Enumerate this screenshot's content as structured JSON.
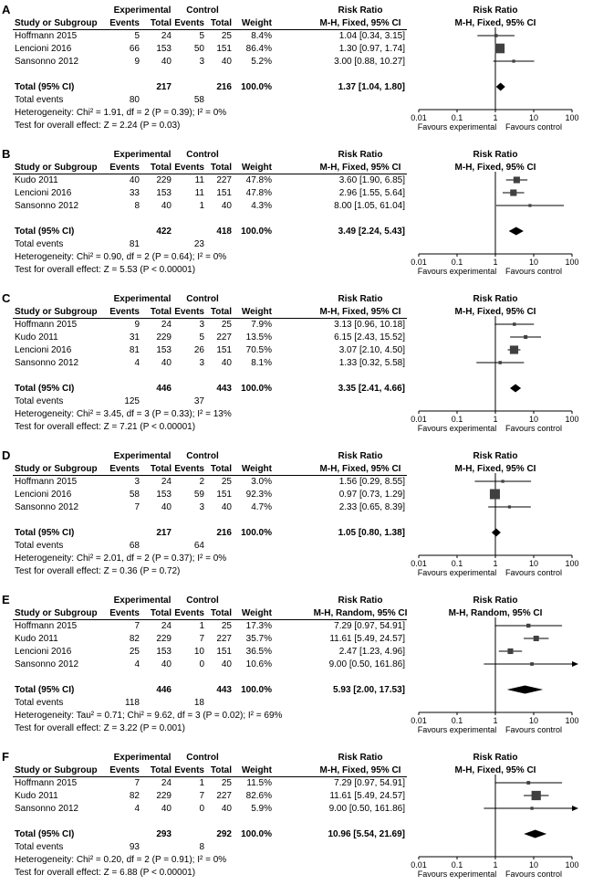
{
  "chart_data": {
    "type": "forest",
    "xscale": "log",
    "xlim": [
      0.01,
      100
    ],
    "xticks": [
      0.01,
      0.1,
      1,
      10,
      100
    ],
    "favours": {
      "left": "Favours experimental",
      "right": "Favours control"
    },
    "marker_color": "#404040",
    "headers": {
      "study": "Study or Subgroup",
      "experimental": "Experimental",
      "control": "Control",
      "events": "Events",
      "total": "Total",
      "weight": "Weight",
      "risk_ratio": "Risk Ratio"
    },
    "panels": [
      {
        "label": "A",
        "effect_label": "M-H, Fixed, 95% CI",
        "studies": [
          {
            "name": "Hoffmann 2015",
            "exp_events": "5",
            "exp_total": "24",
            "ctrl_events": "5",
            "ctrl_total": "25",
            "weight": "8.4%",
            "rr": 1.04,
            "lo": 0.34,
            "hi": 3.15,
            "ci_text": "1.04 [0.34, 3.15]"
          },
          {
            "name": "Lencioni 2016",
            "exp_events": "66",
            "exp_total": "153",
            "ctrl_events": "50",
            "ctrl_total": "151",
            "weight": "86.4%",
            "rr": 1.3,
            "lo": 0.97,
            "hi": 1.74,
            "ci_text": "1.30 [0.97, 1.74]"
          },
          {
            "name": "Sansonno 2012",
            "exp_events": "9",
            "exp_total": "40",
            "ctrl_events": "3",
            "ctrl_total": "40",
            "weight": "5.2%",
            "rr": 3.0,
            "lo": 0.88,
            "hi": 10.27,
            "ci_text": "3.00 [0.88, 10.27]"
          }
        ],
        "total": {
          "label": "Total (95% CI)",
          "exp_total": "217",
          "ctrl_total": "216",
          "weight": "100.0%",
          "rr": 1.37,
          "lo": 1.04,
          "hi": 1.8,
          "ci_text": "1.37 [1.04, 1.80]"
        },
        "total_events": {
          "label": "Total events",
          "experimental": "80",
          "control": "58"
        },
        "heterogeneity": "Heterogeneity: Chi² = 1.91, df = 2 (P = 0.39); I² = 0%",
        "overall_effect": "Test for overall effect: Z = 2.24 (P = 0.03)"
      },
      {
        "label": "B",
        "effect_label": "M-H, Fixed, 95% CI",
        "studies": [
          {
            "name": "Kudo 2011",
            "exp_events": "40",
            "exp_total": "229",
            "ctrl_events": "11",
            "ctrl_total": "227",
            "weight": "47.8%",
            "rr": 3.6,
            "lo": 1.9,
            "hi": 6.85,
            "ci_text": "3.60 [1.90, 6.85]"
          },
          {
            "name": "Lencioni 2016",
            "exp_events": "33",
            "exp_total": "153",
            "ctrl_events": "11",
            "ctrl_total": "151",
            "weight": "47.8%",
            "rr": 2.96,
            "lo": 1.55,
            "hi": 5.64,
            "ci_text": "2.96 [1.55, 5.64]"
          },
          {
            "name": "Sansonno 2012",
            "exp_events": "8",
            "exp_total": "40",
            "ctrl_events": "1",
            "ctrl_total": "40",
            "weight": "4.3%",
            "rr": 8.0,
            "lo": 1.05,
            "hi": 61.04,
            "ci_text": "8.00 [1.05, 61.04]"
          }
        ],
        "total": {
          "label": "Total (95% CI)",
          "exp_total": "422",
          "ctrl_total": "418",
          "weight": "100.0%",
          "rr": 3.49,
          "lo": 2.24,
          "hi": 5.43,
          "ci_text": "3.49 [2.24, 5.43]"
        },
        "total_events": {
          "label": "Total events",
          "experimental": "81",
          "control": "23"
        },
        "heterogeneity": "Heterogeneity: Chi² = 0.90, df = 2 (P = 0.64); I² = 0%",
        "overall_effect": "Test for overall effect: Z = 5.53 (P < 0.00001)"
      },
      {
        "label": "C",
        "effect_label": "M-H, Fixed, 95% CI",
        "studies": [
          {
            "name": "Hoffmann 2015",
            "exp_events": "9",
            "exp_total": "24",
            "ctrl_events": "3",
            "ctrl_total": "25",
            "weight": "7.9%",
            "rr": 3.13,
            "lo": 0.96,
            "hi": 10.18,
            "ci_text": "3.13 [0.96, 10.18]"
          },
          {
            "name": "Kudo 2011",
            "exp_events": "31",
            "exp_total": "229",
            "ctrl_events": "5",
            "ctrl_total": "227",
            "weight": "13.5%",
            "rr": 6.15,
            "lo": 2.43,
            "hi": 15.52,
            "ci_text": "6.15 [2.43, 15.52]"
          },
          {
            "name": "Lencioni 2016",
            "exp_events": "81",
            "exp_total": "153",
            "ctrl_events": "26",
            "ctrl_total": "151",
            "weight": "70.5%",
            "rr": 3.07,
            "lo": 2.1,
            "hi": 4.5,
            "ci_text": "3.07 [2.10, 4.50]"
          },
          {
            "name": "Sansonno 2012",
            "exp_events": "4",
            "exp_total": "40",
            "ctrl_events": "3",
            "ctrl_total": "40",
            "weight": "8.1%",
            "rr": 1.33,
            "lo": 0.32,
            "hi": 5.58,
            "ci_text": "1.33 [0.32, 5.58]"
          }
        ],
        "total": {
          "label": "Total (95% CI)",
          "exp_total": "446",
          "ctrl_total": "443",
          "weight": "100.0%",
          "rr": 3.35,
          "lo": 2.41,
          "hi": 4.66,
          "ci_text": "3.35 [2.41, 4.66]"
        },
        "total_events": {
          "label": "Total events",
          "experimental": "125",
          "control": "37"
        },
        "heterogeneity": "Heterogeneity: Chi² = 3.45, df = 3 (P = 0.33); I² = 13%",
        "overall_effect": "Test for overall effect: Z = 7.21 (P < 0.00001)"
      },
      {
        "label": "D",
        "effect_label": "M-H, Fixed, 95% CI",
        "studies": [
          {
            "name": "Hoffmann 2015",
            "exp_events": "3",
            "exp_total": "24",
            "ctrl_events": "2",
            "ctrl_total": "25",
            "weight": "3.0%",
            "rr": 1.56,
            "lo": 0.29,
            "hi": 8.55,
            "ci_text": "1.56 [0.29, 8.55]"
          },
          {
            "name": "Lencioni 2016",
            "exp_events": "58",
            "exp_total": "153",
            "ctrl_events": "59",
            "ctrl_total": "151",
            "weight": "92.3%",
            "rr": 0.97,
            "lo": 0.73,
            "hi": 1.29,
            "ci_text": "0.97 [0.73, 1.29]"
          },
          {
            "name": "Sansonno 2012",
            "exp_events": "7",
            "exp_total": "40",
            "ctrl_events": "3",
            "ctrl_total": "40",
            "weight": "4.7%",
            "rr": 2.33,
            "lo": 0.65,
            "hi": 8.39,
            "ci_text": "2.33 [0.65, 8.39]"
          }
        ],
        "total": {
          "label": "Total (95% CI)",
          "exp_total": "217",
          "ctrl_total": "216",
          "weight": "100.0%",
          "rr": 1.05,
          "lo": 0.8,
          "hi": 1.38,
          "ci_text": "1.05 [0.80, 1.38]"
        },
        "total_events": {
          "label": "Total events",
          "experimental": "68",
          "control": "64"
        },
        "heterogeneity": "Heterogeneity: Chi² = 2.01, df = 2 (P = 0.37); I² = 0%",
        "overall_effect": "Test for overall effect: Z = 0.36 (P = 0.72)"
      },
      {
        "label": "E",
        "effect_label": "M-H, Random, 95% CI",
        "studies": [
          {
            "name": "Hoffmann 2015",
            "exp_events": "7",
            "exp_total": "24",
            "ctrl_events": "1",
            "ctrl_total": "25",
            "weight": "17.3%",
            "rr": 7.29,
            "lo": 0.97,
            "hi": 54.91,
            "ci_text": "7.29 [0.97, 54.91]"
          },
          {
            "name": "Kudo 2011",
            "exp_events": "82",
            "exp_total": "229",
            "ctrl_events": "7",
            "ctrl_total": "227",
            "weight": "35.7%",
            "rr": 11.61,
            "lo": 5.49,
            "hi": 24.57,
            "ci_text": "11.61 [5.49, 24.57]"
          },
          {
            "name": "Lencioni 2016",
            "exp_events": "25",
            "exp_total": "153",
            "ctrl_events": "10",
            "ctrl_total": "151",
            "weight": "36.5%",
            "rr": 2.47,
            "lo": 1.23,
            "hi": 4.96,
            "ci_text": "2.47 [1.23, 4.96]"
          },
          {
            "name": "Sansonno 2012",
            "exp_events": "4",
            "exp_total": "40",
            "ctrl_events": "0",
            "ctrl_total": "40",
            "weight": "10.6%",
            "rr": 9.0,
            "lo": 0.5,
            "hi": 161.86,
            "ci_text": "9.00 [0.50, 161.86]"
          }
        ],
        "total": {
          "label": "Total (95% CI)",
          "exp_total": "446",
          "ctrl_total": "443",
          "weight": "100.0%",
          "rr": 5.93,
          "lo": 2.0,
          "hi": 17.53,
          "ci_text": "5.93 [2.00, 17.53]"
        },
        "total_events": {
          "label": "Total events",
          "experimental": "118",
          "control": "18"
        },
        "heterogeneity": "Heterogeneity: Tau² = 0.71; Chi² = 9.62, df = 3 (P = 0.02); I² = 69%",
        "overall_effect": "Test for overall effect: Z = 3.22 (P = 0.001)"
      },
      {
        "label": "F",
        "effect_label": "M-H, Fixed, 95% CI",
        "studies": [
          {
            "name": "Hoffmann 2015",
            "exp_events": "7",
            "exp_total": "24",
            "ctrl_events": "1",
            "ctrl_total": "25",
            "weight": "11.5%",
            "rr": 7.29,
            "lo": 0.97,
            "hi": 54.91,
            "ci_text": "7.29 [0.97, 54.91]"
          },
          {
            "name": "Kudo 2011",
            "exp_events": "82",
            "exp_total": "229",
            "ctrl_events": "7",
            "ctrl_total": "227",
            "weight": "82.6%",
            "rr": 11.61,
            "lo": 5.49,
            "hi": 24.57,
            "ci_text": "11.61 [5.49, 24.57]"
          },
          {
            "name": "Sansonno 2012",
            "exp_events": "4",
            "exp_total": "40",
            "ctrl_events": "0",
            "ctrl_total": "40",
            "weight": "5.9%",
            "rr": 9.0,
            "lo": 0.5,
            "hi": 161.86,
            "ci_text": "9.00 [0.50, 161.86]"
          }
        ],
        "total": {
          "label": "Total (95% CI)",
          "exp_total": "293",
          "ctrl_total": "292",
          "weight": "100.0%",
          "rr": 10.96,
          "lo": 5.54,
          "hi": 21.69,
          "ci_text": "10.96 [5.54, 21.69]"
        },
        "total_events": {
          "label": "Total events",
          "experimental": "93",
          "control": "8"
        },
        "heterogeneity": "Heterogeneity: Chi² = 0.20, df = 2 (P = 0.91); I² = 0%",
        "overall_effect": "Test for overall effect: Z = 6.88 (P < 0.00001)"
      }
    ]
  }
}
